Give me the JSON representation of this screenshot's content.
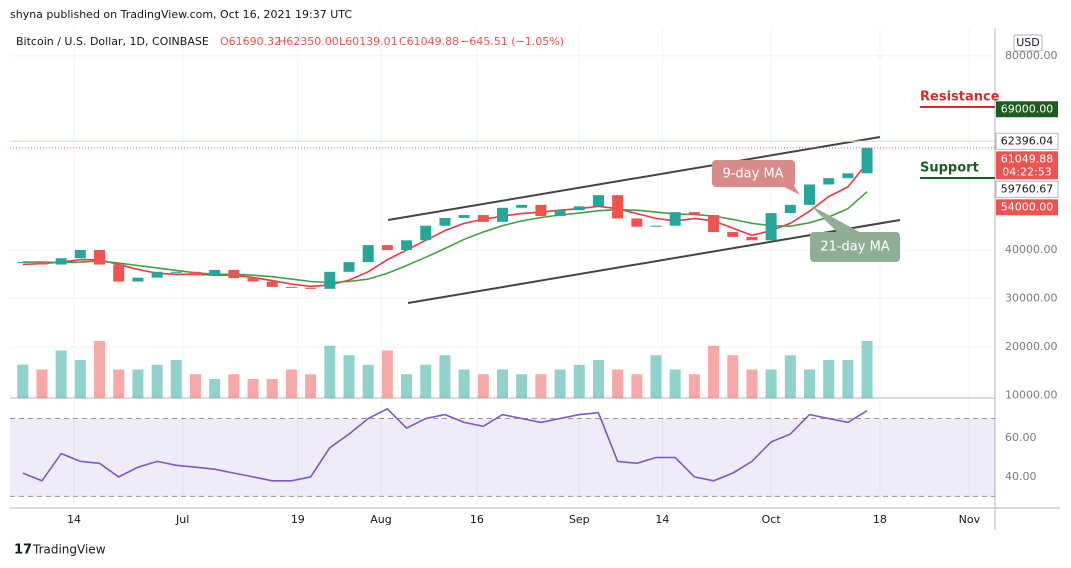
{
  "header": {
    "publisher": "shyna published on TradingView.com, Oct 16, 2021 19:37 UTC",
    "symbol": "Bitcoin / U.S. Dollar, 1D, COINBASE",
    "open": "O61690.32",
    "high": "H62350.00",
    "low": "L60139.01",
    "close": "C61049.88",
    "change": "−645.51 (−1.05%)"
  },
  "footer": {
    "brand": "TradingView"
  },
  "chart_data": {
    "type": "candlestick",
    "currency": "USD",
    "xlim": [
      "2021-06-04",
      "2021-11-05"
    ],
    "xticks": [
      {
        "value": "2021-06-14",
        "label": "14"
      },
      {
        "value": "2021-07-01",
        "label": "Jul"
      },
      {
        "value": "2021-07-19",
        "label": "19"
      },
      {
        "value": "2021-08-01",
        "label": "Aug"
      },
      {
        "value": "2021-08-16",
        "label": "16"
      },
      {
        "value": "2021-09-01",
        "label": "Sep"
      },
      {
        "value": "2021-09-14",
        "label": "14"
      },
      {
        "value": "2021-10-01",
        "label": "Oct"
      },
      {
        "value": "2021-10-18",
        "label": "18"
      },
      {
        "value": "2021-11-01",
        "label": "Nov"
      }
    ],
    "ylim": [
      9500,
      84300
    ],
    "yticks": [
      {
        "value": 10000,
        "label": "10000.00"
      },
      {
        "value": 20000,
        "label": "20000.00"
      },
      {
        "value": 30000,
        "label": "30000.00"
      },
      {
        "value": 40000,
        "label": "40000.00"
      },
      {
        "value": 80000,
        "label": "80000.00"
      }
    ],
    "x": [
      "2021-06-06",
      "2021-06-09",
      "2021-06-12",
      "2021-06-15",
      "2021-06-18",
      "2021-06-21",
      "2021-06-24",
      "2021-06-27",
      "2021-06-30",
      "2021-07-03",
      "2021-07-06",
      "2021-07-09",
      "2021-07-12",
      "2021-07-15",
      "2021-07-18",
      "2021-07-21",
      "2021-07-24",
      "2021-07-27",
      "2021-07-30",
      "2021-08-02",
      "2021-08-05",
      "2021-08-08",
      "2021-08-11",
      "2021-08-14",
      "2021-08-17",
      "2021-08-20",
      "2021-08-23",
      "2021-08-26",
      "2021-08-29",
      "2021-09-01",
      "2021-09-04",
      "2021-09-07",
      "2021-09-10",
      "2021-09-13",
      "2021-09-16",
      "2021-09-19",
      "2021-09-22",
      "2021-09-25",
      "2021-09-28",
      "2021-10-01",
      "2021-10-04",
      "2021-10-07",
      "2021-10-10",
      "2021-10-13",
      "2021-10-16"
    ],
    "close": [
      37500,
      37000,
      38300,
      40000,
      37000,
      33500,
      34300,
      35500,
      35500,
      34800,
      35900,
      34200,
      33500,
      32400,
      32200,
      32000,
      35500,
      37500,
      41000,
      40000,
      42000,
      45000,
      46600,
      47200,
      45800,
      48700,
      49300,
      47000,
      48200,
      49000,
      51300,
      46500,
      44800,
      45000,
      47800,
      47200,
      43700,
      42700,
      42000,
      47600,
      49300,
      53500,
      54800,
      55800,
      61049.88
    ],
    "up_color": "#26a69a",
    "down_color": "#ef5350",
    "series": [
      {
        "name": "9-day MA",
        "color": "#f23645",
        "values": [
          37000,
          37200,
          37500,
          38000,
          38000,
          37000,
          36000,
          35200,
          35000,
          35000,
          34800,
          34800,
          34300,
          33700,
          33000,
          32500,
          32800,
          33800,
          35500,
          38000,
          40000,
          42000,
          44000,
          45500,
          46300,
          47000,
          47500,
          47800,
          48200,
          48500,
          49000,
          48500,
          47500,
          46500,
          46000,
          46500,
          46000,
          44500,
          43000,
          44000,
          45500,
          48000,
          51000,
          53000,
          57900
        ]
      },
      {
        "name": "21-day MA",
        "color": "#43a047",
        "values": [
          37500,
          37500,
          37400,
          37500,
          37700,
          37300,
          36800,
          36300,
          35800,
          35300,
          35000,
          35000,
          34800,
          34500,
          34000,
          33500,
          33300,
          33500,
          34000,
          35200,
          36800,
          38500,
          40300,
          42200,
          43700,
          45000,
          46000,
          46700,
          47200,
          47600,
          48100,
          48300,
          48200,
          47800,
          47400,
          47300,
          47000,
          46300,
          45500,
          45000,
          44900,
          45600,
          46800,
          48500,
          52000
        ]
      }
    ],
    "volume": [
      35,
      30,
      50,
      40,
      60,
      30,
      30,
      35,
      40,
      25,
      20,
      25,
      20,
      20,
      30,
      25,
      55,
      45,
      35,
      50,
      25,
      35,
      45,
      30,
      25,
      30,
      25,
      25,
      30,
      35,
      40,
      30,
      25,
      45,
      30,
      25,
      55,
      45,
      30,
      30,
      45,
      30,
      40,
      40,
      60
    ],
    "volume_lim": [
      0,
      100
    ],
    "rsi": {
      "color": "#7e57c2",
      "values": [
        42,
        38,
        52,
        48,
        47,
        40,
        45,
        48,
        46,
        45,
        44,
        42,
        40,
        38,
        38,
        40,
        55,
        62,
        70,
        75,
        65,
        70,
        72,
        68,
        66,
        72,
        70,
        68,
        70,
        72,
        73,
        48,
        47,
        50,
        50,
        40,
        38,
        42,
        48,
        58,
        62,
        72,
        70,
        68,
        74
      ],
      "ylim": [
        25.6,
        79.5
      ],
      "yticks": [
        {
          "value": 40,
          "label": "40.00"
        },
        {
          "value": 60,
          "label": "60.00"
        }
      ],
      "band": [
        30,
        70
      ]
    },
    "price_labels": [
      {
        "value": 69000,
        "label": "69000.00",
        "color": "#1b5e20"
      },
      {
        "value": 62396.04,
        "label": "62396.04",
        "color": "#ffffff"
      },
      {
        "value": 61049.88,
        "label": "61049.88",
        "color": "#ef5350",
        "countdown": "04:22:53"
      },
      {
        "value": 59760.67,
        "label": "59760.67",
        "color": "#ffffff"
      },
      {
        "value": 54000,
        "label": "54000.00",
        "color": "#ef5350"
      }
    ],
    "annotations": {
      "resistance": {
        "text": "Resistance",
        "value": 69000,
        "color": "#d32f2f"
      },
      "support": {
        "text": "Support",
        "value": 54000,
        "color": "#1b5e20"
      },
      "ma9": "9-day MA",
      "ma21": "21-day MA"
    }
  }
}
